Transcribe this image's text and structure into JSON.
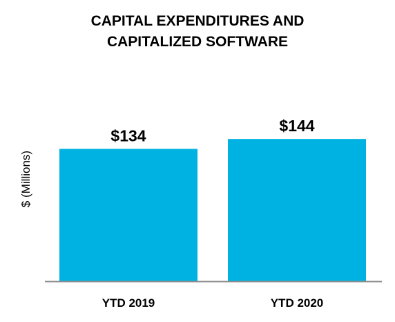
{
  "chart_data": {
    "type": "bar",
    "title_lines": [
      "CAPITAL EXPENDITURES AND",
      "CAPITALIZED SOFTWARE"
    ],
    "categories": [
      "YTD 2019",
      "YTD 2020"
    ],
    "values": [
      134,
      144
    ],
    "data_labels": [
      "$134",
      "$144"
    ],
    "xlabel": "",
    "ylabel": "$ (Millions)",
    "ylim": [
      0,
      170
    ],
    "grid": false,
    "legend": "none",
    "colors": {
      "bar": "#00B2E2",
      "axis": "#8c8c8c",
      "text": "#000000"
    }
  }
}
